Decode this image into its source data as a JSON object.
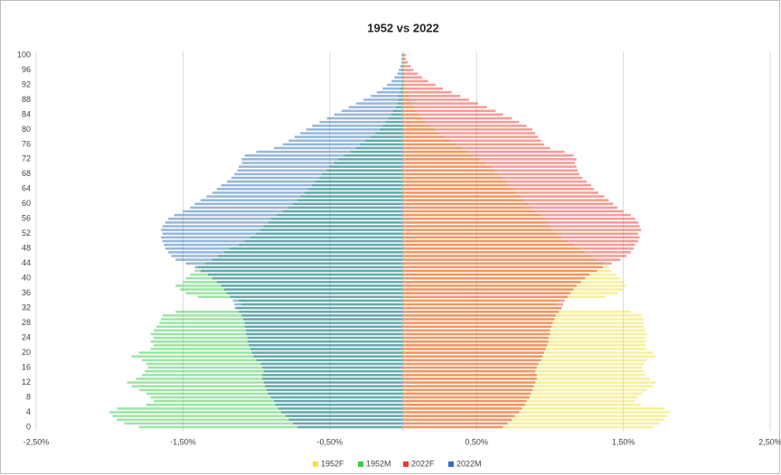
{
  "chart_data": {
    "type": "bar",
    "orientation": "horizontal",
    "title": "1952 vs 2022",
    "categories": [
      0,
      null,
      null,
      null,
      4,
      null,
      null,
      null,
      8,
      null,
      null,
      null,
      12,
      null,
      null,
      null,
      16,
      null,
      null,
      null,
      20,
      null,
      null,
      null,
      24,
      null,
      null,
      null,
      28,
      null,
      null,
      null,
      32,
      null,
      null,
      null,
      36,
      null,
      null,
      null,
      40,
      null,
      null,
      null,
      44,
      null,
      null,
      null,
      48,
      null,
      null,
      null,
      52,
      null,
      null,
      null,
      56,
      null,
      null,
      null,
      60,
      null,
      null,
      null,
      64,
      null,
      null,
      null,
      68,
      null,
      null,
      null,
      72,
      null,
      null,
      null,
      76,
      null,
      null,
      null,
      80,
      null,
      null,
      null,
      84,
      null,
      null,
      null,
      88,
      null,
      null,
      null,
      92,
      null,
      null,
      null,
      96,
      null,
      null,
      null,
      100
    ],
    "xlim": [
      -2.5,
      2.5
    ],
    "xticks": [
      {
        "value": -2.5,
        "label": "-2,50%"
      },
      {
        "value": -1.5,
        "label": "-1,50%"
      },
      {
        "value": -0.5,
        "label": "-0,50%"
      },
      {
        "value": 0.5,
        "label": "0,50%"
      },
      {
        "value": 1.5,
        "label": "1,50%"
      },
      {
        "value": 2.5,
        "label": "2,50%"
      }
    ],
    "grid": true,
    "legend": "bottom",
    "series": [
      {
        "name": "1952F",
        "color": "#f2e23a",
        "values": [
          1.7,
          1.75,
          1.78,
          1.8,
          1.82,
          1.78,
          1.62,
          1.58,
          1.6,
          1.63,
          1.66,
          1.7,
          1.72,
          1.68,
          1.65,
          1.64,
          1.63,
          1.64,
          1.66,
          1.72,
          1.7,
          1.66,
          1.65,
          1.66,
          1.65,
          1.66,
          1.65,
          1.64,
          1.64,
          1.64,
          1.63,
          1.55,
          1.08,
          1.04,
          1.06,
          1.38,
          1.46,
          1.5,
          1.52,
          1.5,
          1.48,
          1.45,
          1.42,
          1.4,
          1.36,
          1.32,
          1.28,
          1.24,
          1.2,
          1.16,
          1.12,
          1.08,
          1.05,
          1.02,
          1.0,
          0.98,
          0.96,
          0.93,
          0.9,
          0.87,
          0.85,
          0.82,
          0.8,
          0.77,
          0.75,
          0.72,
          0.7,
          0.67,
          0.65,
          0.62,
          0.6,
          0.56,
          0.52,
          0.48,
          0.44,
          0.4,
          0.36,
          0.32,
          0.28,
          0.24,
          0.21,
          0.18,
          0.15,
          0.13,
          0.11,
          0.09,
          0.07,
          0.06,
          0.05,
          0.04,
          0.03,
          0.02,
          0.02,
          0.01,
          0.01,
          0.01,
          0.01,
          0.01,
          0.01,
          0.01,
          0.01
        ]
      },
      {
        "name": "1952M",
        "color": "#3ccc4a",
        "values": [
          -1.8,
          -1.9,
          -1.95,
          -1.98,
          -2.0,
          -1.95,
          -1.75,
          -1.7,
          -1.72,
          -1.75,
          -1.8,
          -1.85,
          -1.88,
          -1.82,
          -1.78,
          -1.76,
          -1.74,
          -1.75,
          -1.78,
          -1.85,
          -1.8,
          -1.72,
          -1.7,
          -1.72,
          -1.7,
          -1.72,
          -1.7,
          -1.68,
          -1.66,
          -1.65,
          -1.64,
          -1.55,
          -1.15,
          -1.1,
          -1.12,
          -1.4,
          -1.48,
          -1.52,
          -1.55,
          -1.5,
          -1.48,
          -1.45,
          -1.42,
          -1.4,
          -1.35,
          -1.3,
          -1.26,
          -1.22,
          -1.18,
          -1.12,
          -1.08,
          -1.04,
          -1.0,
          -0.97,
          -0.95,
          -0.92,
          -0.9,
          -0.86,
          -0.82,
          -0.78,
          -0.75,
          -0.72,
          -0.7,
          -0.67,
          -0.65,
          -0.62,
          -0.6,
          -0.57,
          -0.55,
          -0.52,
          -0.5,
          -0.47,
          -0.44,
          -0.4,
          -0.36,
          -0.32,
          -0.29,
          -0.26,
          -0.22,
          -0.19,
          -0.16,
          -0.14,
          -0.12,
          -0.1,
          -0.08,
          -0.07,
          -0.05,
          -0.04,
          -0.03,
          -0.03,
          -0.02,
          -0.02,
          -0.01,
          -0.01,
          -0.01,
          -0.01,
          -0.01,
          -0.01,
          -0.01,
          -0.01,
          -0.01
        ]
      },
      {
        "name": "2022F",
        "color": "#f0392b",
        "values": [
          0.68,
          0.71,
          0.74,
          0.76,
          0.79,
          0.81,
          0.83,
          0.84,
          0.86,
          0.87,
          0.88,
          0.89,
          0.9,
          0.91,
          0.91,
          0.9,
          0.91,
          0.92,
          0.94,
          0.95,
          0.96,
          0.97,
          0.98,
          0.99,
          0.99,
          1.0,
          1.0,
          1.01,
          1.02,
          1.03,
          1.04,
          1.06,
          1.08,
          1.09,
          1.1,
          1.12,
          1.14,
          1.16,
          1.18,
          1.21,
          1.24,
          1.27,
          1.32,
          1.36,
          1.42,
          1.48,
          1.52,
          1.55,
          1.57,
          1.58,
          1.6,
          1.61,
          1.6,
          1.62,
          1.61,
          1.6,
          1.58,
          1.55,
          1.5,
          1.46,
          1.43,
          1.4,
          1.37,
          1.33,
          1.3,
          1.28,
          1.25,
          1.22,
          1.2,
          1.19,
          1.18,
          1.17,
          1.18,
          1.16,
          1.1,
          1.0,
          0.96,
          0.94,
          0.92,
          0.9,
          0.88,
          0.84,
          0.79,
          0.74,
          0.68,
          0.63,
          0.57,
          0.51,
          0.45,
          0.39,
          0.33,
          0.27,
          0.22,
          0.17,
          0.13,
          0.1,
          0.07,
          0.05,
          0.03,
          0.02,
          0.02
        ]
      },
      {
        "name": "2022M",
        "color": "#2e6fb8",
        "values": [
          -0.72,
          -0.75,
          -0.78,
          -0.8,
          -0.83,
          -0.85,
          -0.87,
          -0.88,
          -0.9,
          -0.92,
          -0.93,
          -0.94,
          -0.95,
          -0.96,
          -0.96,
          -0.95,
          -0.96,
          -0.97,
          -1.0,
          -1.02,
          -1.03,
          -1.04,
          -1.05,
          -1.06,
          -1.06,
          -1.07,
          -1.07,
          -1.08,
          -1.08,
          -1.09,
          -1.1,
          -1.12,
          -1.14,
          -1.15,
          -1.16,
          -1.18,
          -1.2,
          -1.22,
          -1.24,
          -1.27,
          -1.3,
          -1.33,
          -1.38,
          -1.42,
          -1.48,
          -1.55,
          -1.58,
          -1.6,
          -1.62,
          -1.63,
          -1.64,
          -1.65,
          -1.64,
          -1.65,
          -1.64,
          -1.62,
          -1.6,
          -1.56,
          -1.5,
          -1.45,
          -1.42,
          -1.38,
          -1.34,
          -1.3,
          -1.27,
          -1.24,
          -1.2,
          -1.17,
          -1.15,
          -1.13,
          -1.12,
          -1.1,
          -1.1,
          -1.08,
          -1.0,
          -0.88,
          -0.82,
          -0.78,
          -0.74,
          -0.7,
          -0.66,
          -0.62,
          -0.57,
          -0.52,
          -0.47,
          -0.42,
          -0.37,
          -0.32,
          -0.27,
          -0.22,
          -0.18,
          -0.14,
          -0.11,
          -0.08,
          -0.06,
          -0.04,
          -0.03,
          -0.02,
          -0.01,
          -0.01,
          -0.01
        ]
      }
    ]
  }
}
